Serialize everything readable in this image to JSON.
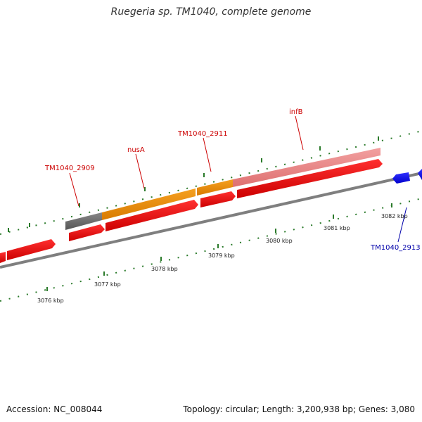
{
  "title": "Ruegeria sp. TM1040, complete genome",
  "footer": {
    "accession": "Accession: NC_008044",
    "summary": "Topology: circular; Length: 3,200,938 bp; Genes: 3,080"
  },
  "axis": {
    "unit": "kbp",
    "labels": [
      "3076 kbp",
      "3077 kbp",
      "3078 kbp",
      "3079 kbp",
      "3080 kbp",
      "3081 kbp",
      "3082 kbp"
    ]
  },
  "genes": [
    {
      "name": "TM1040_2909",
      "color": "#cc0000"
    },
    {
      "name": "nusA",
      "color": "#cc0000"
    },
    {
      "name": "TM1040_2911",
      "color": "#cc0000"
    },
    {
      "name": "infB",
      "color": "#cc0000"
    },
    {
      "name": "TM1040_2913",
      "color": "#0000aa"
    }
  ],
  "colors": {
    "track_line": "#7f7f7f",
    "forward_cds": "#ee0000",
    "reverse_cds": "#1010ee",
    "gene_block_grey": "#666666",
    "gene_block_orange": "#ee8800",
    "gene_block_pink": "#e98585",
    "ticks": "#2a7a2a"
  }
}
